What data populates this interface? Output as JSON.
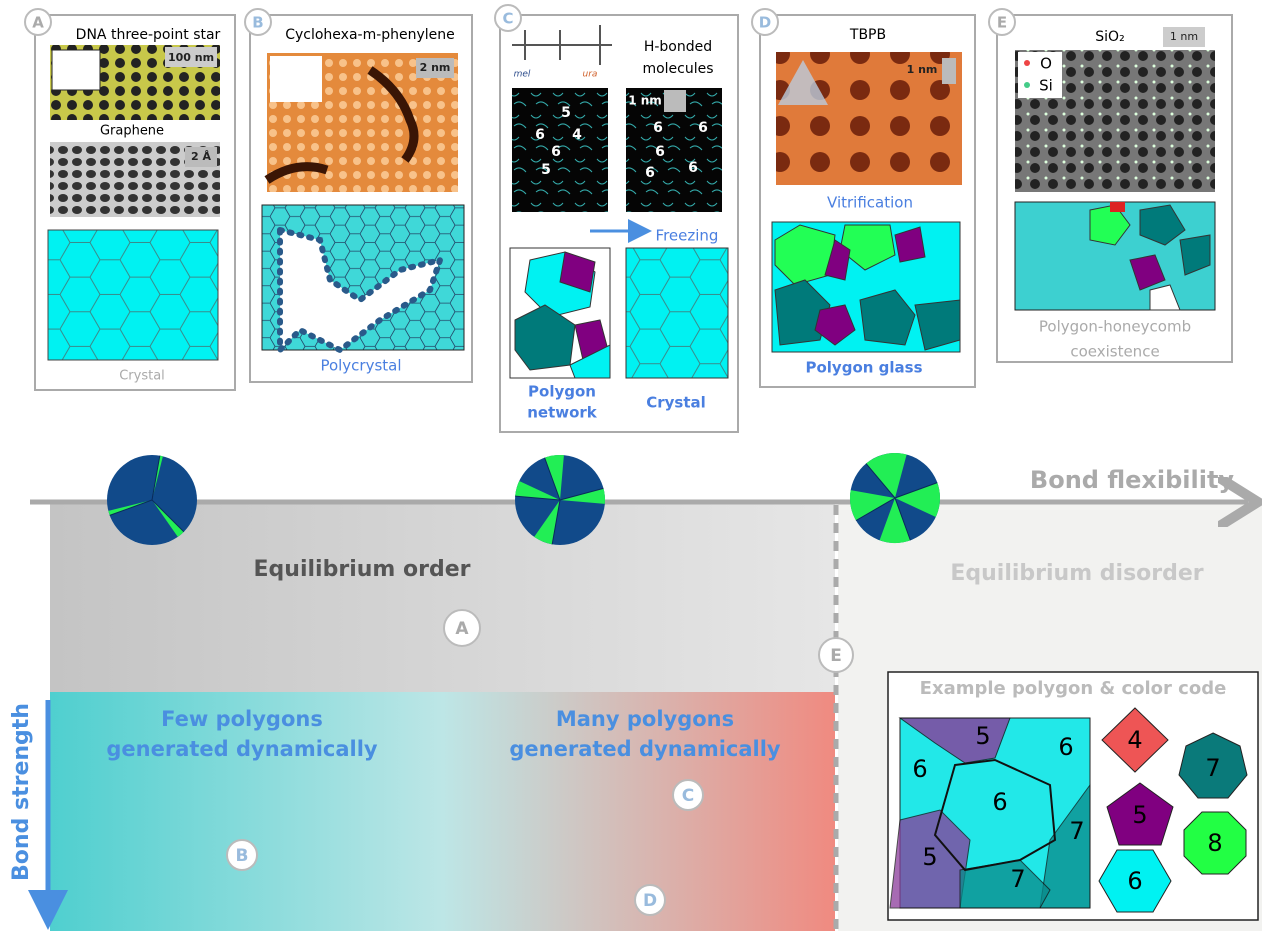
{
  "panels": [
    {
      "label": "A",
      "title": "DNA three-point star",
      "scale": "100 nm",
      "subtitle": "Graphene",
      "scale2": "2 Å",
      "caption": "Crystal"
    },
    {
      "label": "B",
      "title": "Cyclohexa-m-phenylene",
      "scale": "2 nm",
      "caption": "Polycrystal"
    },
    {
      "label": "C",
      "title": [
        "H-bonded",
        "molecules"
      ],
      "molecules": [
        "mel",
        "ura"
      ],
      "scale": "1 nm",
      "left_numbers": [
        "5",
        "6",
        "4",
        "6",
        "5"
      ],
      "right_numbers": [
        "6",
        "6",
        "6",
        "6",
        "6"
      ],
      "arrow": "Freezing",
      "caption_left": [
        "Polygon",
        "network"
      ],
      "caption_right": "Crystal"
    },
    {
      "label": "D",
      "title": "TBPB",
      "scale": "1 nm",
      "subtitle": "Vitrification",
      "caption": "Polygon glass"
    },
    {
      "label": "E",
      "title": "SiO₂",
      "scale": "1 nm",
      "atoms": [
        "O",
        "Si"
      ],
      "caption": [
        "Polygon-honeycomb",
        "coexistence"
      ]
    }
  ],
  "axis": {
    "x_label": "Bond flexibility",
    "y_label": "Bond strength"
  },
  "regions": {
    "order": "Equilibrium order",
    "disorder": "Equilibrium disorder",
    "few": [
      "Few polygons",
      "generated dynamically"
    ],
    "many": [
      "Many polygons",
      "generated dynamically"
    ]
  },
  "markers": [
    "A",
    "B",
    "C",
    "D",
    "E"
  ],
  "legend": {
    "title": "Example polygon & color code",
    "shapes": [
      "4",
      "5",
      "6",
      "7",
      "8"
    ],
    "patch": [
      "5",
      "6",
      "6",
      "6",
      "7",
      "7",
      "5"
    ]
  }
}
